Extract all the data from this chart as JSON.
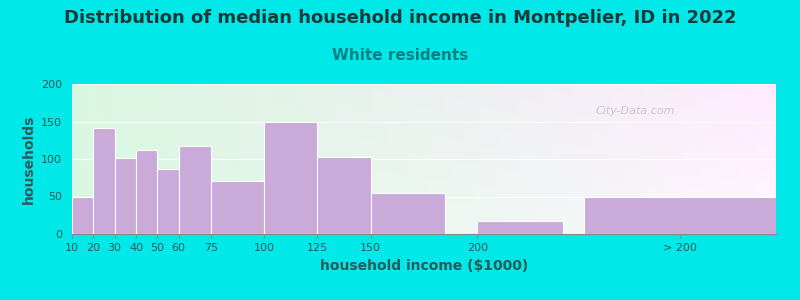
{
  "title": "Distribution of median household income in Montpelier, ID in 2022",
  "subtitle": "White residents",
  "xlabel": "household income ($1000)",
  "ylabel": "households",
  "bar_labels": [
    "10",
    "20",
    "30",
    "40",
    "50",
    "60",
    "75",
    "100",
    "125",
    "150",
    "200",
    "> 200"
  ],
  "bar_heights": [
    50,
    142,
    101,
    112,
    87,
    118,
    71,
    150,
    103,
    55,
    18,
    50
  ],
  "bar_left_edges": [
    10,
    20,
    30,
    40,
    50,
    60,
    75,
    100,
    125,
    150,
    200,
    250
  ],
  "bar_widths": [
    10,
    10,
    10,
    10,
    10,
    15,
    25,
    25,
    25,
    35,
    40,
    90
  ],
  "bar_color": "#c9aad9",
  "background_color": "#00e8e8",
  "title_color": "#1a3a3a",
  "title_fontsize": 13,
  "subtitle_color": "#008080",
  "subtitle_fontsize": 11,
  "axis_label_color": "#2a5a5a",
  "axis_label_fontsize": 10,
  "tick_label_color": "#2a5a5a",
  "tick_label_fontsize": 8,
  "ylim": [
    0,
    200
  ],
  "yticks": [
    0,
    50,
    100,
    150,
    200
  ],
  "xlim": [
    10,
    340
  ],
  "tick_positions": [
    10,
    20,
    30,
    40,
    50,
    60,
    75,
    100,
    125,
    150,
    200,
    295
  ],
  "watermark": "City-Data.com",
  "plot_bg_colors": [
    "#c8e8d0",
    "#eaf5f0",
    "#f5f5ff",
    "#ffffff"
  ]
}
